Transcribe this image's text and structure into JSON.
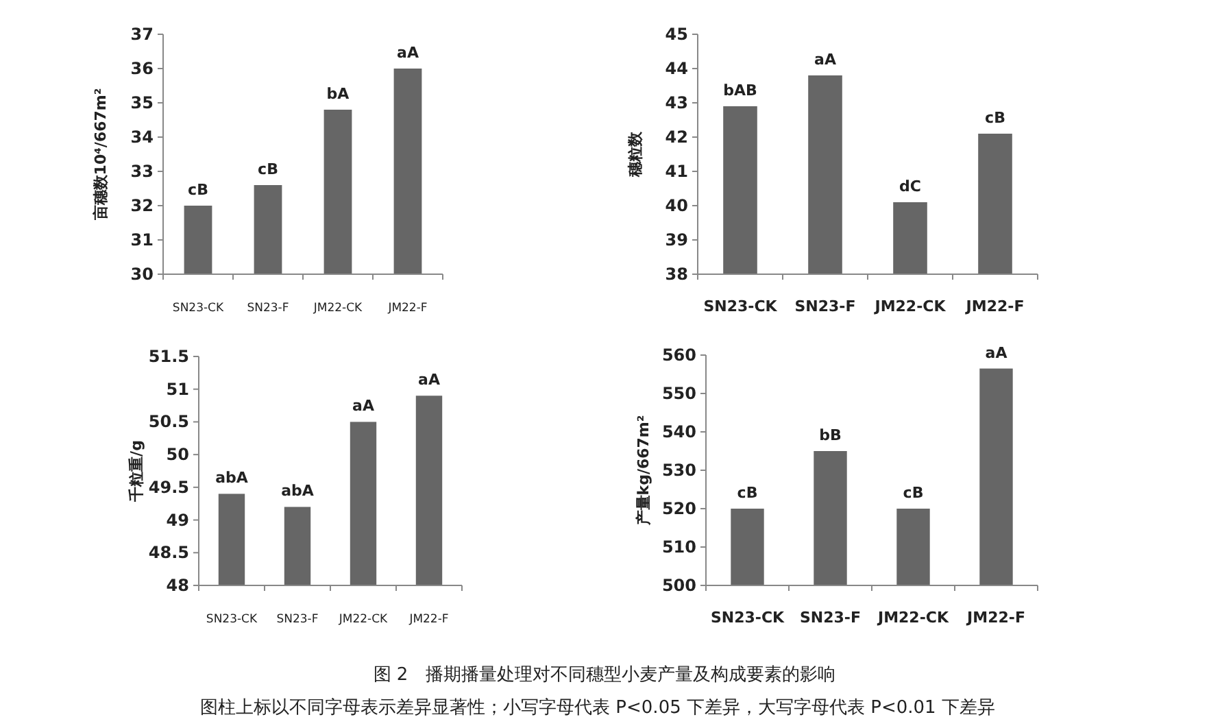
{
  "chart_data": [
    {
      "type": "bar",
      "ylabel": "亩穗数10⁴/667m²",
      "categories": [
        "SN23-CK",
        "SN23-F",
        "JM22-CK",
        "JM22-F"
      ],
      "values": [
        32.0,
        32.6,
        34.8,
        36.0
      ],
      "value_labels": [
        "cB",
        "cB",
        "bA",
        "aA"
      ],
      "color": "#666666",
      "ylim": [
        30,
        37
      ],
      "yticks": [
        30,
        31,
        32,
        33,
        34,
        35,
        36,
        37
      ]
    },
    {
      "type": "bar",
      "ylabel": "穗粒数",
      "categories": [
        "SN23-CK",
        "SN23-F",
        "JM22-CK",
        "JM22-F"
      ],
      "values": [
        42.9,
        43.8,
        40.1,
        42.1
      ],
      "value_labels": [
        "bAB",
        "aA",
        "dC",
        "cB"
      ],
      "color": "#666666",
      "ylim": [
        38,
        45
      ],
      "yticks": [
        38,
        39,
        40,
        41,
        42,
        43,
        44,
        45
      ]
    },
    {
      "type": "bar",
      "ylabel": "千粒重/g",
      "categories": [
        "SN23-CK",
        "SN23-F",
        "JM22-CK",
        "JM22-F"
      ],
      "values": [
        49.4,
        49.2,
        50.5,
        50.9
      ],
      "value_labels": [
        "abA",
        "abA",
        "aA",
        "aA"
      ],
      "color": "#666666",
      "ylim": [
        48,
        51.5
      ],
      "yticks": [
        48,
        48.5,
        49,
        49.5,
        50,
        50.5,
        51,
        51.5
      ]
    },
    {
      "type": "bar",
      "ylabel": "产量kg/667m²",
      "categories": [
        "SN23-CK",
        "SN23-F",
        "JM22-CK",
        "JM22-F"
      ],
      "values": [
        520,
        535,
        520,
        556.5
      ],
      "value_labels": [
        "cB",
        "bB",
        "cB",
        "aA"
      ],
      "color": "#666666",
      "ylim": [
        500,
        560
      ],
      "yticks": [
        500,
        510,
        520,
        530,
        540,
        550,
        560
      ],
      "annotations": [
        "图 2　播期播量处理对不同穗型小麦产量及构成要素的影响",
        "图柱上标以不同字母表示差异显著性；小写字母代表 P<0.05 下差异，大写字母代表 P<0.01 下差异"
      ]
    }
  ]
}
